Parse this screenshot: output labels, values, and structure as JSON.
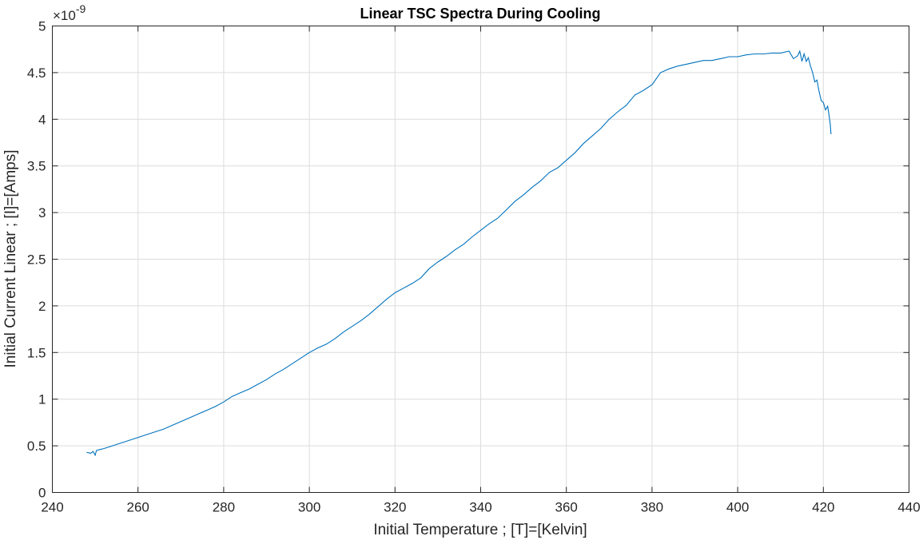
{
  "chart_data": {
    "type": "line",
    "title": "Linear TSC Spectra During Cooling",
    "xlabel": "Initial Temperature ; [T]=[Kelvin]",
    "ylabel": "Initial Current Linear ; [I]=[Amps]",
    "y_exponent_base": "×10",
    "y_exponent_power": "-9",
    "xlim": [
      240,
      440
    ],
    "ylim": [
      0,
      5
    ],
    "xticks": [
      240,
      260,
      280,
      300,
      320,
      340,
      360,
      380,
      400,
      420,
      440
    ],
    "yticks": [
      0,
      0.5,
      1,
      1.5,
      2,
      2.5,
      3,
      3.5,
      4,
      4.5,
      5
    ],
    "xtick_labels": [
      "240",
      "260",
      "280",
      "300",
      "320",
      "340",
      "360",
      "380",
      "400",
      "420",
      "440"
    ],
    "ytick_labels": [
      "0",
      "0.5",
      "1",
      "1.5",
      "2",
      "2.5",
      "3",
      "3.5",
      "4",
      "4.5",
      "5"
    ],
    "grid": true,
    "colors": {
      "series": "#0072BD",
      "grid": "#dcdcdc",
      "axes": "#262626"
    },
    "series": [
      {
        "name": "Linear TSC",
        "x": [
          248.0,
          249.0,
          249.5,
          250.0,
          250.3,
          251.0,
          252.0,
          254.0,
          256.0,
          258.0,
          260.0,
          262.0,
          264.0,
          266.0,
          268.0,
          270.0,
          272.0,
          274.0,
          276.0,
          278.0,
          280.0,
          282.0,
          284.0,
          286.0,
          288.0,
          290.0,
          292.0,
          294.0,
          296.0,
          298.0,
          300.0,
          302.0,
          304.0,
          306.0,
          308.0,
          310.0,
          312.0,
          314.0,
          316.0,
          318.0,
          320.0,
          322.0,
          324.0,
          326.0,
          328.0,
          330.0,
          332.0,
          334.0,
          336.0,
          338.0,
          340.0,
          342.0,
          344.0,
          346.0,
          348.0,
          350.0,
          352.0,
          354.0,
          356.0,
          358.0,
          360.0,
          362.0,
          364.0,
          366.0,
          368.0,
          370.0,
          372.0,
          374.0,
          376.0,
          378.0,
          380.0,
          382.0,
          384.0,
          386.0,
          388.0,
          390.0,
          392.0,
          394.0,
          396.0,
          398.0,
          400.0,
          402.0,
          404.0,
          406.0,
          408.0,
          410.0,
          412.0,
          413.0,
          414.0,
          414.5,
          415.0,
          415.5,
          416.0,
          416.5,
          417.0,
          417.5,
          418.0,
          418.5,
          419.0,
          419.5,
          420.0,
          420.5,
          421.0,
          421.3,
          421.6,
          421.8
        ],
        "y": [
          0.43,
          0.42,
          0.44,
          0.4,
          0.45,
          0.46,
          0.47,
          0.5,
          0.53,
          0.56,
          0.59,
          0.62,
          0.65,
          0.68,
          0.72,
          0.76,
          0.8,
          0.84,
          0.88,
          0.92,
          0.97,
          1.03,
          1.07,
          1.11,
          1.16,
          1.21,
          1.27,
          1.32,
          1.38,
          1.44,
          1.5,
          1.55,
          1.59,
          1.65,
          1.72,
          1.78,
          1.84,
          1.91,
          1.99,
          2.07,
          2.14,
          2.19,
          2.24,
          2.3,
          2.4,
          2.47,
          2.53,
          2.6,
          2.66,
          2.74,
          2.81,
          2.88,
          2.94,
          3.03,
          3.12,
          3.19,
          3.27,
          3.34,
          3.43,
          3.48,
          3.56,
          3.64,
          3.74,
          3.82,
          3.9,
          4.0,
          4.08,
          4.15,
          4.26,
          4.31,
          4.37,
          4.5,
          4.54,
          4.57,
          4.59,
          4.61,
          4.63,
          4.63,
          4.65,
          4.67,
          4.67,
          4.69,
          4.7,
          4.7,
          4.71,
          4.71,
          4.73,
          4.65,
          4.68,
          4.73,
          4.62,
          4.7,
          4.62,
          4.66,
          4.57,
          4.5,
          4.4,
          4.42,
          4.3,
          4.2,
          4.18,
          4.1,
          4.14,
          4.05,
          3.95,
          3.84
        ]
      }
    ]
  }
}
